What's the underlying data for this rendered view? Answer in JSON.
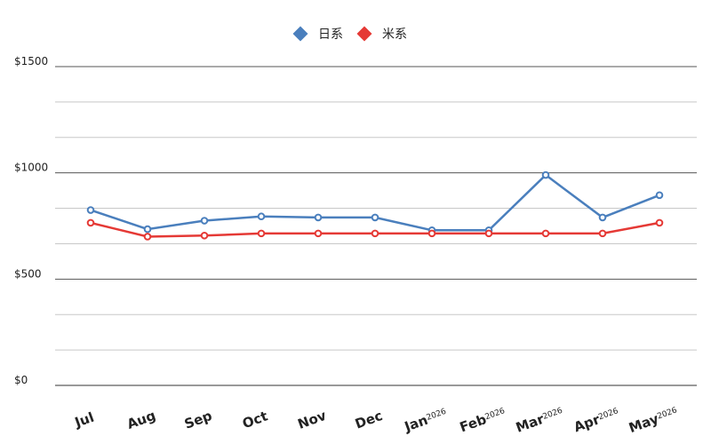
{
  "chart_data": {
    "type": "line",
    "categories": [
      "Jul",
      "Aug",
      "Sep",
      "Oct",
      "Nov",
      "Dec",
      "Jan",
      "Feb",
      "Mar",
      "Apr",
      "May"
    ],
    "category_years": [
      null,
      null,
      null,
      null,
      null,
      null,
      "2026",
      "2026",
      "2026",
      "2026",
      "2026"
    ],
    "series": [
      {
        "name": "日系",
        "color": "#4a7fbd",
        "values": [
          825,
          735,
          775,
          795,
          790,
          790,
          730,
          730,
          990,
          790,
          895
        ]
      },
      {
        "name": "米系",
        "color": "#e53935",
        "values": [
          765,
          700,
          705,
          715,
          715,
          715,
          715,
          715,
          715,
          715,
          765
        ]
      }
    ],
    "ylim": [
      0,
      1500
    ],
    "yticks": [
      {
        "value": 0,
        "label": "$0"
      },
      {
        "value": 500,
        "label": "$500"
      },
      {
        "value": 1000,
        "label": "$1000"
      },
      {
        "value": 1500,
        "label": "$1500"
      }
    ],
    "minor_grid": 3,
    "grid": true,
    "legend": "top"
  }
}
